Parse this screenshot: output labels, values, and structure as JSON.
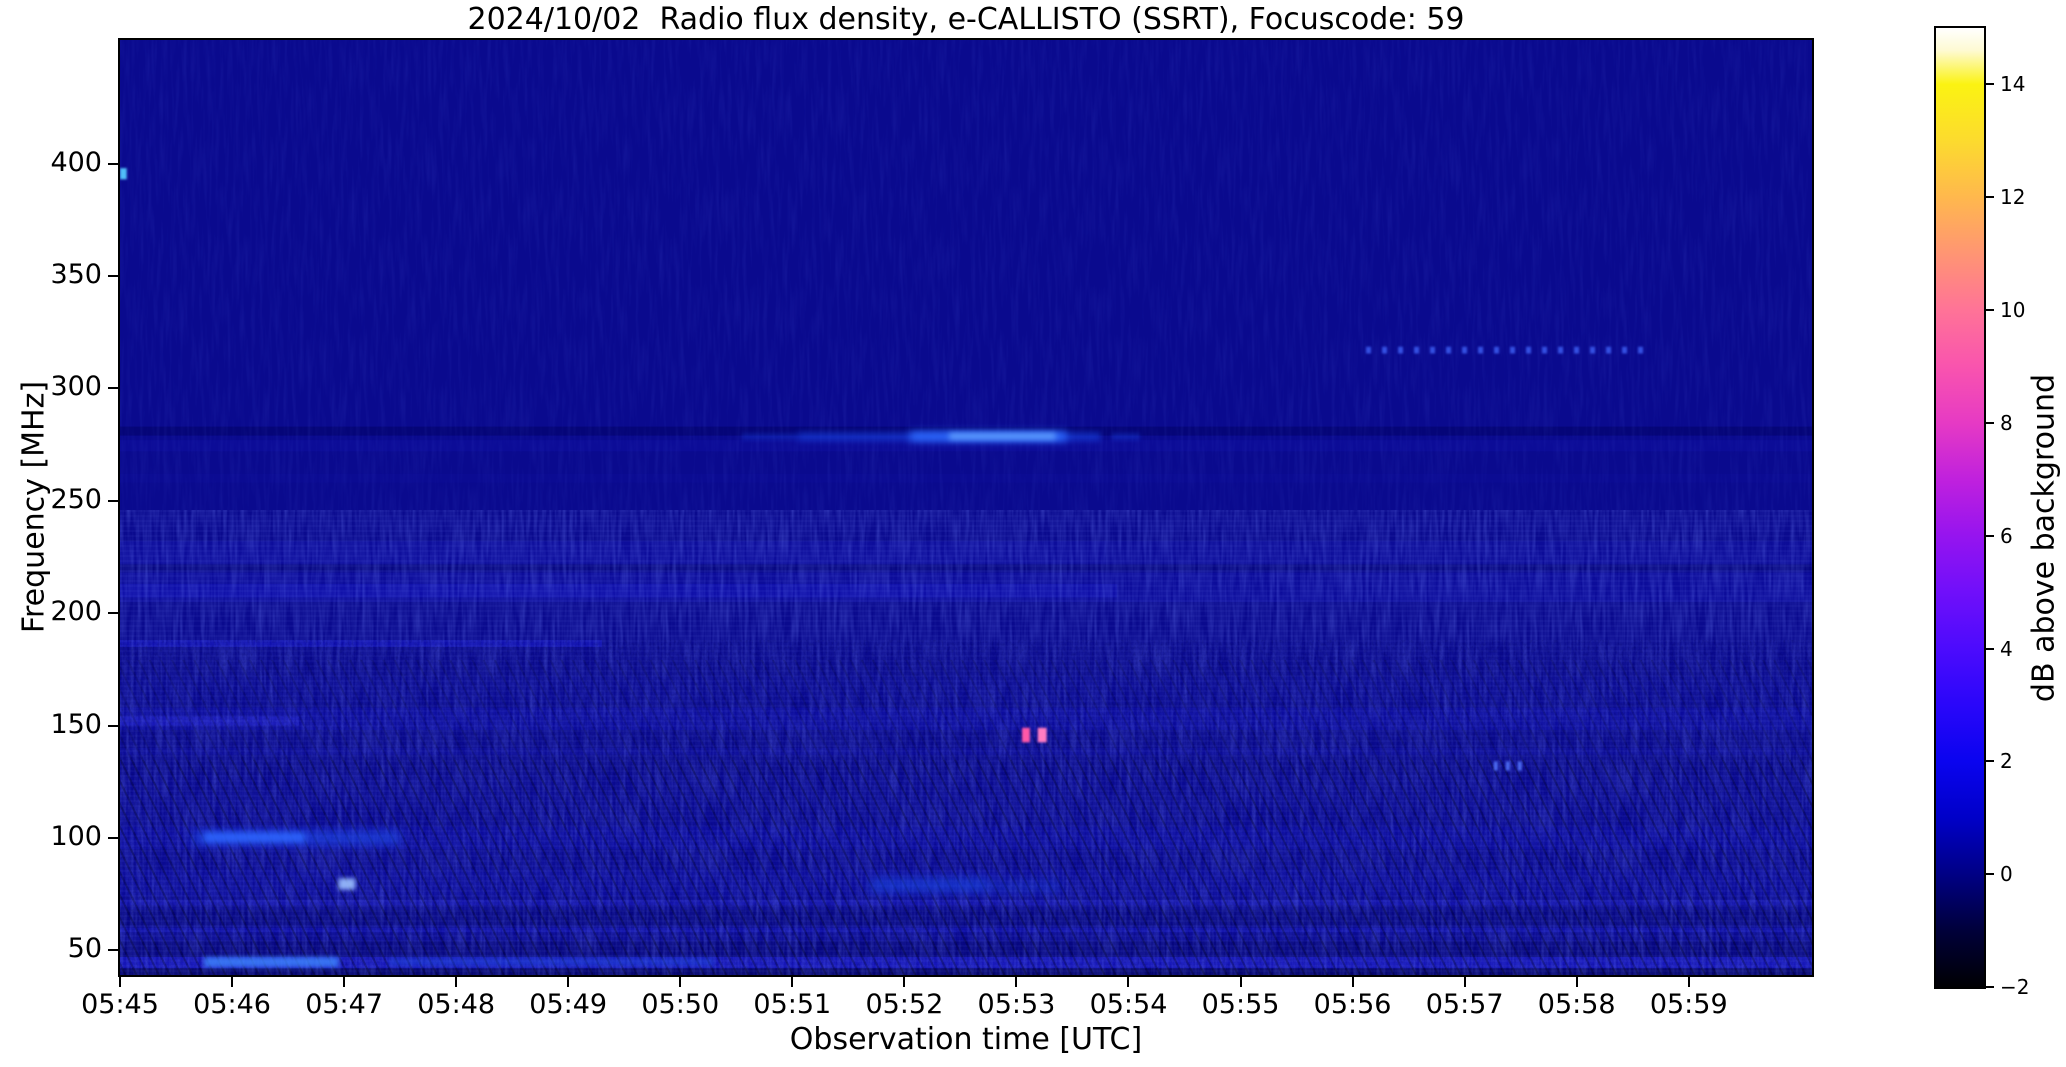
{
  "chart_data": {
    "type": "heatmap",
    "subtype": "radio-spectrogram",
    "title": "2024/10/02  Radio flux density, e-CALLISTO (SSRT), Focuscode: 59",
    "xlabel": "Observation time [UTC]",
    "ylabel": "Frequency [MHz]",
    "x_range_minutes": [
      0,
      15.1
    ],
    "x_start_label": "05:45",
    "y_range_mhz": [
      39,
      455
    ],
    "x_ticks": [
      {
        "label": "05:45",
        "minute": 0
      },
      {
        "label": "05:46",
        "minute": 1
      },
      {
        "label": "05:47",
        "minute": 2
      },
      {
        "label": "05:48",
        "minute": 3
      },
      {
        "label": "05:49",
        "minute": 4
      },
      {
        "label": "05:50",
        "minute": 5
      },
      {
        "label": "05:51",
        "minute": 6
      },
      {
        "label": "05:52",
        "minute": 7
      },
      {
        "label": "05:53",
        "minute": 8
      },
      {
        "label": "05:54",
        "minute": 9
      },
      {
        "label": "05:55",
        "minute": 10
      },
      {
        "label": "05:56",
        "minute": 11
      },
      {
        "label": "05:57",
        "minute": 12
      },
      {
        "label": "05:58",
        "minute": 13
      },
      {
        "label": "05:59",
        "minute": 14
      }
    ],
    "y_ticks": [
      {
        "label": "400",
        "value": 400
      },
      {
        "label": "350",
        "value": 350
      },
      {
        "label": "300",
        "value": 300
      },
      {
        "label": "250",
        "value": 250
      },
      {
        "label": "200",
        "value": 200
      },
      {
        "label": "150",
        "value": 150
      },
      {
        "label": "100",
        "value": 100
      },
      {
        "label": "50",
        "value": 50
      }
    ],
    "colorbar": {
      "label": "dB above background",
      "range_db": [
        -2,
        15
      ],
      "ticks": [
        {
          "label": "14",
          "value": 14
        },
        {
          "label": "12",
          "value": 12
        },
        {
          "label": "10",
          "value": 10
        },
        {
          "label": "8",
          "value": 8
        },
        {
          "label": "6",
          "value": 6
        },
        {
          "label": "4",
          "value": 4
        },
        {
          "label": "2",
          "value": 2
        },
        {
          "label": "0",
          "value": 0
        },
        {
          "label": "−2",
          "value": -2
        }
      ],
      "stops": [
        {
          "value": -2,
          "color": "#000003"
        },
        {
          "value": -1,
          "color": "#00003a"
        },
        {
          "value": 0,
          "color": "#000085"
        },
        {
          "value": 1,
          "color": "#0000c8"
        },
        {
          "value": 2,
          "color": "#0a04ef"
        },
        {
          "value": 3,
          "color": "#2a06fa"
        },
        {
          "value": 4,
          "color": "#4c0bfd"
        },
        {
          "value": 5,
          "color": "#700ffa"
        },
        {
          "value": 6,
          "color": "#9614ef"
        },
        {
          "value": 7,
          "color": "#c021dd"
        },
        {
          "value": 8,
          "color": "#e63ac4"
        },
        {
          "value": 9,
          "color": "#f954ae"
        },
        {
          "value": 10,
          "color": "#ff7397"
        },
        {
          "value": 11,
          "color": "#ff9573"
        },
        {
          "value": 12,
          "color": "#ffb84d"
        },
        {
          "value": 13,
          "color": "#fcdb2e"
        },
        {
          "value": 14,
          "color": "#fbf312"
        },
        {
          "value": 14.6,
          "color": "#fefad2"
        },
        {
          "value": 15,
          "color": "#ffffff"
        }
      ]
    },
    "background_color": "#0a0a8e",
    "figure_background": "#ffffff",
    "bands": [
      {
        "name": "dark channel 279-283 MHz",
        "t0": 0,
        "t1": 15.1,
        "f0": 279,
        "f1": 283,
        "color": "#050574",
        "opacity": 0.85
      },
      {
        "name": "light band 272-277 MHz",
        "t0": 0,
        "t1": 15.1,
        "f0": 272,
        "f1": 277,
        "color": "#0d0d9c",
        "opacity": 0.6
      },
      {
        "name": "light band 258-262 MHz",
        "t0": 0,
        "t1": 15.1,
        "f0": 258,
        "f1": 262,
        "color": "#0c0c96",
        "opacity": 0.5
      },
      {
        "name": "band 236-243 MHz",
        "t0": 0,
        "t1": 15.1,
        "f0": 236,
        "f1": 243,
        "color": "#0b0b92",
        "opacity": 0.5
      },
      {
        "name": "band 222-232 MHz",
        "t0": 0,
        "t1": 15.1,
        "f0": 222,
        "f1": 232,
        "color": "#0d0d9e",
        "opacity": 0.6
      },
      {
        "name": "band 222-232 MHz left enhancement",
        "t0": 0,
        "t1": 8.8,
        "f0": 222,
        "f1": 232,
        "color": "#10109f",
        "opacity": 0.4
      },
      {
        "name": "dark line 219-221 MHz",
        "t0": 0,
        "t1": 15.1,
        "f0": 219,
        "f1": 221.5,
        "color": "#06067c",
        "opacity": 0.7
      },
      {
        "name": "band 205-218 MHz",
        "t0": 0,
        "t1": 15.1,
        "f0": 205,
        "f1": 218,
        "color": "#0e0ea4",
        "opacity": 0.55
      },
      {
        "name": "bright sub-band 207-213 MHz",
        "t0": 0,
        "t1": 8.9,
        "f0": 207,
        "f1": 213,
        "color": "#1212b2",
        "opacity": 0.6
      },
      {
        "name": "light line 185-188 MHz left part",
        "t0": 0,
        "t1": 4.3,
        "f0": 185,
        "f1": 188,
        "color": "#1414c4",
        "opacity": 0.6
      },
      {
        "name": "band 160-172 MHz",
        "t0": 0,
        "t1": 15.1,
        "f0": 160,
        "f1": 172,
        "color": "#0c0c96",
        "opacity": 0.45
      },
      {
        "name": "speckled band 148-158 MHz",
        "t0": 0,
        "t1": 15.1,
        "f0": 148,
        "f1": 158,
        "color": "#0e0ea8",
        "opacity": 0.6
      },
      {
        "name": "bright left segment 150-154 MHz",
        "t0": 0,
        "t1": 1.6,
        "f0": 150,
        "f1": 154,
        "color": "#2222cc",
        "opacity": 0.55
      },
      {
        "name": "line 137-140 MHz",
        "t0": 0,
        "t1": 15.1,
        "f0": 137,
        "f1": 140,
        "color": "#0e0ea0",
        "opacity": 0.55
      },
      {
        "name": "band 120-128 MHz",
        "t0": 0,
        "t1": 15.1,
        "f0": 120,
        "f1": 128,
        "color": "#0c0c98",
        "opacity": 0.5
      },
      {
        "name": "brighter low-frequency region",
        "t0": 0,
        "t1": 15.1,
        "f0": 39,
        "f1": 120,
        "color": "#0c0c9a",
        "opacity": 0.5
      },
      {
        "name": "band 95-105 MHz",
        "t0": 0,
        "t1": 15.1,
        "f0": 95,
        "f1": 105,
        "color": "#0e0eaa",
        "opacity": 0.5
      },
      {
        "name": "band 74-86 MHz",
        "t0": 0,
        "t1": 15.1,
        "f0": 74,
        "f1": 86,
        "color": "#0d0da4",
        "opacity": 0.5
      },
      {
        "name": "speckled line 70-72 MHz",
        "t0": 0,
        "t1": 15.1,
        "f0": 70,
        "f1": 72.5,
        "color": "#1a1abc",
        "opacity": 0.6
      },
      {
        "name": "dark band 61-68 MHz",
        "t0": 0,
        "t1": 15.1,
        "f0": 61,
        "f1": 68,
        "color": "#050578",
        "opacity": 0.55
      },
      {
        "name": "line 58-60 MHz",
        "t0": 0,
        "t1": 15.1,
        "f0": 58,
        "f1": 60,
        "color": "#1414b8",
        "opacity": 0.55
      },
      {
        "name": "dark band 47-54 MHz",
        "t0": 0,
        "t1": 15.1,
        "f0": 47,
        "f1": 54,
        "color": "#050572",
        "opacity": 0.55
      },
      {
        "name": "bright line 42-47 MHz",
        "t0": 0,
        "t1": 15.1,
        "f0": 42,
        "f1": 47,
        "color": "#1a1ac8",
        "opacity": 0.7
      },
      {
        "name": "bottom edge 39-42 MHz",
        "t0": 0,
        "t1": 15.1,
        "f0": 39,
        "f1": 42,
        "color": "#040460",
        "opacity": 0.7
      }
    ],
    "features": [
      {
        "name": "streak 278 MHz left faint dashes",
        "t0": 5.55,
        "t1": 6.05,
        "f0": 277,
        "f1": 280,
        "color": "#1a47e8",
        "opacity": 0.3,
        "blur": 2
      },
      {
        "name": "streak 278 MHz faint extent",
        "t0": 6.05,
        "t1": 8.75,
        "f0": 276.5,
        "f1": 280.5,
        "color": "#1a47e8",
        "opacity": 0.55,
        "blur": 3
      },
      {
        "name": "streak 278 MHz core",
        "t0": 7.05,
        "t1": 8.45,
        "f0": 276.5,
        "f1": 280.8,
        "color": "#2e6bff",
        "opacity": 0.95,
        "blur": 4
      },
      {
        "name": "streak 278 MHz peak",
        "t0": 7.4,
        "t1": 8.35,
        "f0": 277.2,
        "f1": 280.2,
        "color": "#66a6ff",
        "opacity": 0.85,
        "blur": 3
      },
      {
        "name": "streak 278 MHz right faint dash",
        "t0": 8.85,
        "t1": 9.1,
        "f0": 277,
        "f1": 280,
        "color": "#1a47e8",
        "opacity": 0.35,
        "blur": 2
      },
      {
        "name": "pink burst A ~145 MHz",
        "t0": 8.05,
        "t1": 8.12,
        "f0": 142.5,
        "f1": 149,
        "color": "#ff58a8",
        "opacity": 1,
        "blur": 1
      },
      {
        "name": "pink burst B ~145 MHz",
        "t0": 8.19,
        "t1": 8.27,
        "f0": 142.5,
        "f1": 149,
        "color": "#ff7cc2",
        "opacity": 1,
        "blur": 1
      },
      {
        "name": "periodic blips 317 MHz",
        "t0": 11.12,
        "t1": 13.65,
        "f0": 315.5,
        "f1": 318.5,
        "color": "#3c5cf0",
        "opacity": 0.85,
        "blur": 1,
        "dash": "5 11"
      },
      {
        "name": "blips 132 MHz",
        "t0": 12.26,
        "t1": 12.52,
        "f0": 130,
        "f1": 134,
        "color": "#5578ff",
        "opacity": 0.85,
        "blur": 1,
        "dash": "4 8"
      },
      {
        "name": "cyan dot 396 MHz at left edge",
        "t0": 0,
        "t1": 0.06,
        "f0": 393,
        "f1": 398,
        "color": "#54c8ff",
        "opacity": 0.95,
        "blur": 1
      },
      {
        "name": "bright patch ~100 MHz",
        "t0": 0.65,
        "t1": 2.5,
        "f0": 97,
        "f1": 103,
        "color": "#2050f0",
        "opacity": 0.6,
        "blur": 5
      },
      {
        "name": "bright patch ~100 MHz core",
        "t0": 0.75,
        "t1": 1.65,
        "f0": 98,
        "f1": 102.5,
        "color": "#2e66ff",
        "opacity": 0.85,
        "blur": 3
      },
      {
        "name": "bright spot ~80 MHz",
        "t0": 1.95,
        "t1": 2.1,
        "f0": 77,
        "f1": 82,
        "color": "#9cc0ff",
        "opacity": 0.9,
        "blur": 2
      },
      {
        "name": "patch ~79 MHz",
        "t0": 6.7,
        "t1": 7.75,
        "f0": 76,
        "f1": 82,
        "color": "#1b4ae8",
        "opacity": 0.6,
        "blur": 5
      },
      {
        "name": "patch tail ~79 MHz",
        "t0": 7.75,
        "t1": 8.4,
        "f0": 76,
        "f1": 81,
        "color": "#1b4ae8",
        "opacity": 0.3,
        "blur": 5
      },
      {
        "name": "bright segment ~44 MHz",
        "t0": 0.75,
        "t1": 1.95,
        "f0": 42.5,
        "f1": 47,
        "color": "#3e86ff",
        "opacity": 0.8,
        "blur": 2
      },
      {
        "name": "moderate segment ~44 MHz",
        "t0": 2.4,
        "t1": 5.3,
        "f0": 43,
        "f1": 46.5,
        "color": "#2255e8",
        "opacity": 0.4,
        "blur": 2
      }
    ]
  }
}
